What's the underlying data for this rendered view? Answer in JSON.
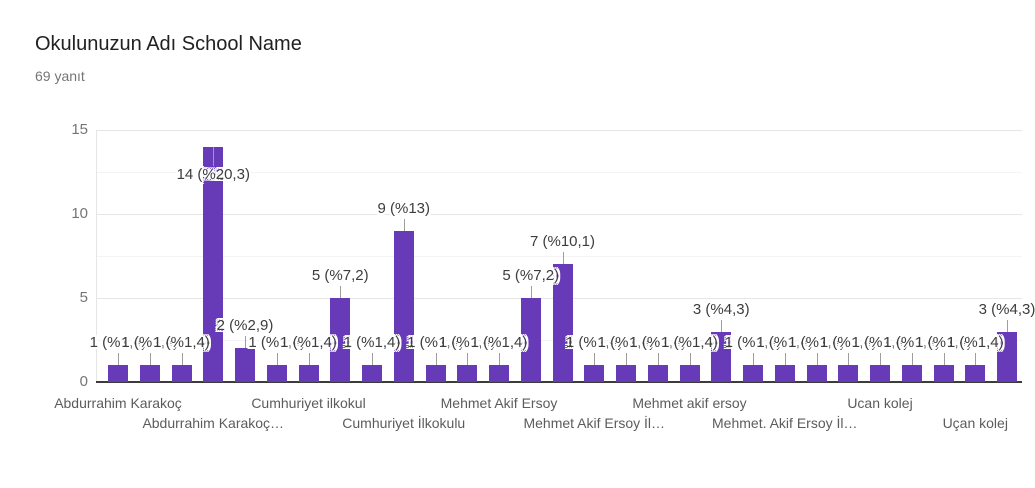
{
  "header": {
    "title": "Okulunuzun Adı School Name",
    "subtitle": "69 yanıt"
  },
  "chart_data": {
    "type": "bar",
    "title": "Okulunuzun Adı School Name",
    "responses_label": "69 yanıt",
    "response_count": 69,
    "bar_color": "#673ab7",
    "ylim": [
      0,
      15
    ],
    "yticks": [
      0,
      5,
      10,
      15
    ],
    "grid": "horizontal",
    "legend_position": "none",
    "bars": [
      {
        "value": 1,
        "label": "1 (%1,4)",
        "category": "Abdurrahim Karakoç",
        "category_row": 1
      },
      {
        "value": 1,
        "label": "1 (%1,4)"
      },
      {
        "value": 1,
        "label": "1 (%1,4)"
      },
      {
        "value": 14,
        "label": "14 (%20,3)",
        "category": "Abdurrahim Karakoç…",
        "category_row": 2
      },
      {
        "value": 2,
        "label": "2 (%2,9)"
      },
      {
        "value": 1,
        "label": "1 (%1,4)"
      },
      {
        "value": 1,
        "label": "1 (%1,4)",
        "category": "Cumhuriyet ilkokul",
        "category_row": 1
      },
      {
        "value": 5,
        "label": "5 (%7,2)"
      },
      {
        "value": 1,
        "label": "1 (%1,4)"
      },
      {
        "value": 9,
        "label": "9 (%13)",
        "category": "Cumhuriyet İlkokulu",
        "category_row": 2
      },
      {
        "value": 1,
        "label": "1 (%1,4)"
      },
      {
        "value": 1,
        "label": "1 (%1,4)"
      },
      {
        "value": 1,
        "label": "1 (%1,4)",
        "category": "Mehmet Akif Ersoy",
        "category_row": 1
      },
      {
        "value": 5,
        "label": "5 (%7,2)"
      },
      {
        "value": 7,
        "label": "7 (%10,1)"
      },
      {
        "value": 1,
        "label": "1 (%1,4)",
        "category": "Mehmet Akif Ersoy İl…",
        "category_row": 2
      },
      {
        "value": 1,
        "label": "1 (%1,4)"
      },
      {
        "value": 1,
        "label": "1 (%1,4)"
      },
      {
        "value": 1,
        "label": "1 (%1,4)",
        "category": "Mehmet akif ersoy",
        "category_row": 1
      },
      {
        "value": 3,
        "label": "3 (%4,3)"
      },
      {
        "value": 1,
        "label": "1 (%1,4)"
      },
      {
        "value": 1,
        "label": "1 (%1,4)",
        "category": "Mehmet. Akif Ersoy İl…",
        "category_row": 2
      },
      {
        "value": 1,
        "label": "1 (%1,4)"
      },
      {
        "value": 1,
        "label": "1 (%1,4)"
      },
      {
        "value": 1,
        "label": "1 (%1,4)",
        "category": "Ucan kolej",
        "category_row": 1
      },
      {
        "value": 1,
        "label": "1 (%1,4)"
      },
      {
        "value": 1,
        "label": "1 (%1,4)"
      },
      {
        "value": 1,
        "label": "1 (%1,4)",
        "category": "Uçan kolej",
        "category_row": 2
      },
      {
        "value": 3,
        "label": "3 (%4,3)"
      }
    ]
  },
  "colors": {
    "bar": "#673ab7",
    "title_text": "#212121",
    "subtitle_text": "#757575",
    "value_label_text": "#3d3d3d",
    "axis_tick_text": "#757575",
    "category_text": "#5c5c5c",
    "gridline_major": "#e6e6e6",
    "gridline_minor": "#f4f4f4",
    "baseline": "#3c3c3c"
  }
}
